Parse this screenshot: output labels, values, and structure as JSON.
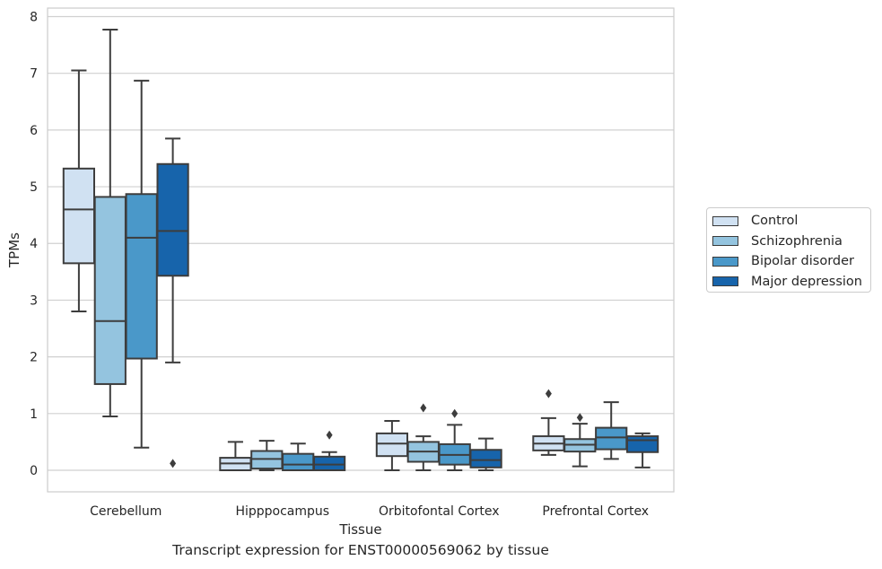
{
  "chart_data": {
    "type": "box",
    "title": "",
    "caption": "Transcript expression for ENST00000569062 by tissue",
    "xlabel": "Tissue",
    "ylabel": "TPMs",
    "ylim": [
      -0.38,
      8.15
    ],
    "yticks": [
      "0",
      "1",
      "2",
      "3",
      "4",
      "5",
      "6",
      "7",
      "8"
    ],
    "grid": "horizontal",
    "legend_position": "right",
    "categories": [
      "Cerebellum",
      "Hipppocampus",
      "Orbitofontal Cortex",
      "Prefrontal Cortex"
    ],
    "series": [
      {
        "name": "Control",
        "color": "#d0e1f2",
        "boxes": [
          {
            "whisker_low": 2.8,
            "q1": 3.65,
            "median": 4.6,
            "q3": 5.32,
            "whisker_high": 7.05,
            "outliers": []
          },
          {
            "whisker_low": 0.0,
            "q1": 0.0,
            "median": 0.12,
            "q3": 0.22,
            "whisker_high": 0.5,
            "outliers": []
          },
          {
            "whisker_low": 0.0,
            "q1": 0.25,
            "median": 0.47,
            "q3": 0.65,
            "whisker_high": 0.87,
            "outliers": []
          },
          {
            "whisker_low": 0.27,
            "q1": 0.35,
            "median": 0.47,
            "q3": 0.6,
            "whisker_high": 0.92,
            "outliers": [
              1.35
            ]
          }
        ]
      },
      {
        "name": "Schizophrenia",
        "color": "#94c4df",
        "boxes": [
          {
            "whisker_low": 0.95,
            "q1": 1.52,
            "median": 2.63,
            "q3": 4.82,
            "whisker_high": 7.77,
            "outliers": []
          },
          {
            "whisker_low": 0.0,
            "q1": 0.03,
            "median": 0.2,
            "q3": 0.34,
            "whisker_high": 0.52,
            "outliers": []
          },
          {
            "whisker_low": 0.0,
            "q1": 0.15,
            "median": 0.33,
            "q3": 0.5,
            "whisker_high": 0.6,
            "outliers": [
              1.1
            ]
          },
          {
            "whisker_low": 0.07,
            "q1": 0.33,
            "median": 0.45,
            "q3": 0.55,
            "whisker_high": 0.82,
            "outliers": [
              0.93
            ]
          }
        ]
      },
      {
        "name": "Bipolar disorder",
        "color": "#4a98c9",
        "boxes": [
          {
            "whisker_low": 0.4,
            "q1": 1.97,
            "median": 4.1,
            "q3": 4.87,
            "whisker_high": 6.87,
            "outliers": []
          },
          {
            "whisker_low": 0.0,
            "q1": 0.0,
            "median": 0.1,
            "q3": 0.29,
            "whisker_high": 0.47,
            "outliers": []
          },
          {
            "whisker_low": 0.0,
            "q1": 0.1,
            "median": 0.27,
            "q3": 0.46,
            "whisker_high": 0.8,
            "outliers": [
              1.0
            ]
          },
          {
            "whisker_low": 0.2,
            "q1": 0.37,
            "median": 0.58,
            "q3": 0.75,
            "whisker_high": 1.2,
            "outliers": []
          }
        ]
      },
      {
        "name": "Major depression",
        "color": "#1764ab",
        "boxes": [
          {
            "whisker_low": 1.9,
            "q1": 3.43,
            "median": 4.22,
            "q3": 5.4,
            "whisker_high": 5.85,
            "outliers": [
              0.12
            ]
          },
          {
            "whisker_low": 0.0,
            "q1": 0.0,
            "median": 0.1,
            "q3": 0.24,
            "whisker_high": 0.32,
            "outliers": [
              0.62
            ]
          },
          {
            "whisker_low": 0.0,
            "q1": 0.05,
            "median": 0.18,
            "q3": 0.36,
            "whisker_high": 0.56,
            "outliers": []
          },
          {
            "whisker_low": 0.05,
            "q1": 0.32,
            "median": 0.53,
            "q3": 0.6,
            "whisker_high": 0.65,
            "outliers": []
          }
        ]
      }
    ]
  }
}
